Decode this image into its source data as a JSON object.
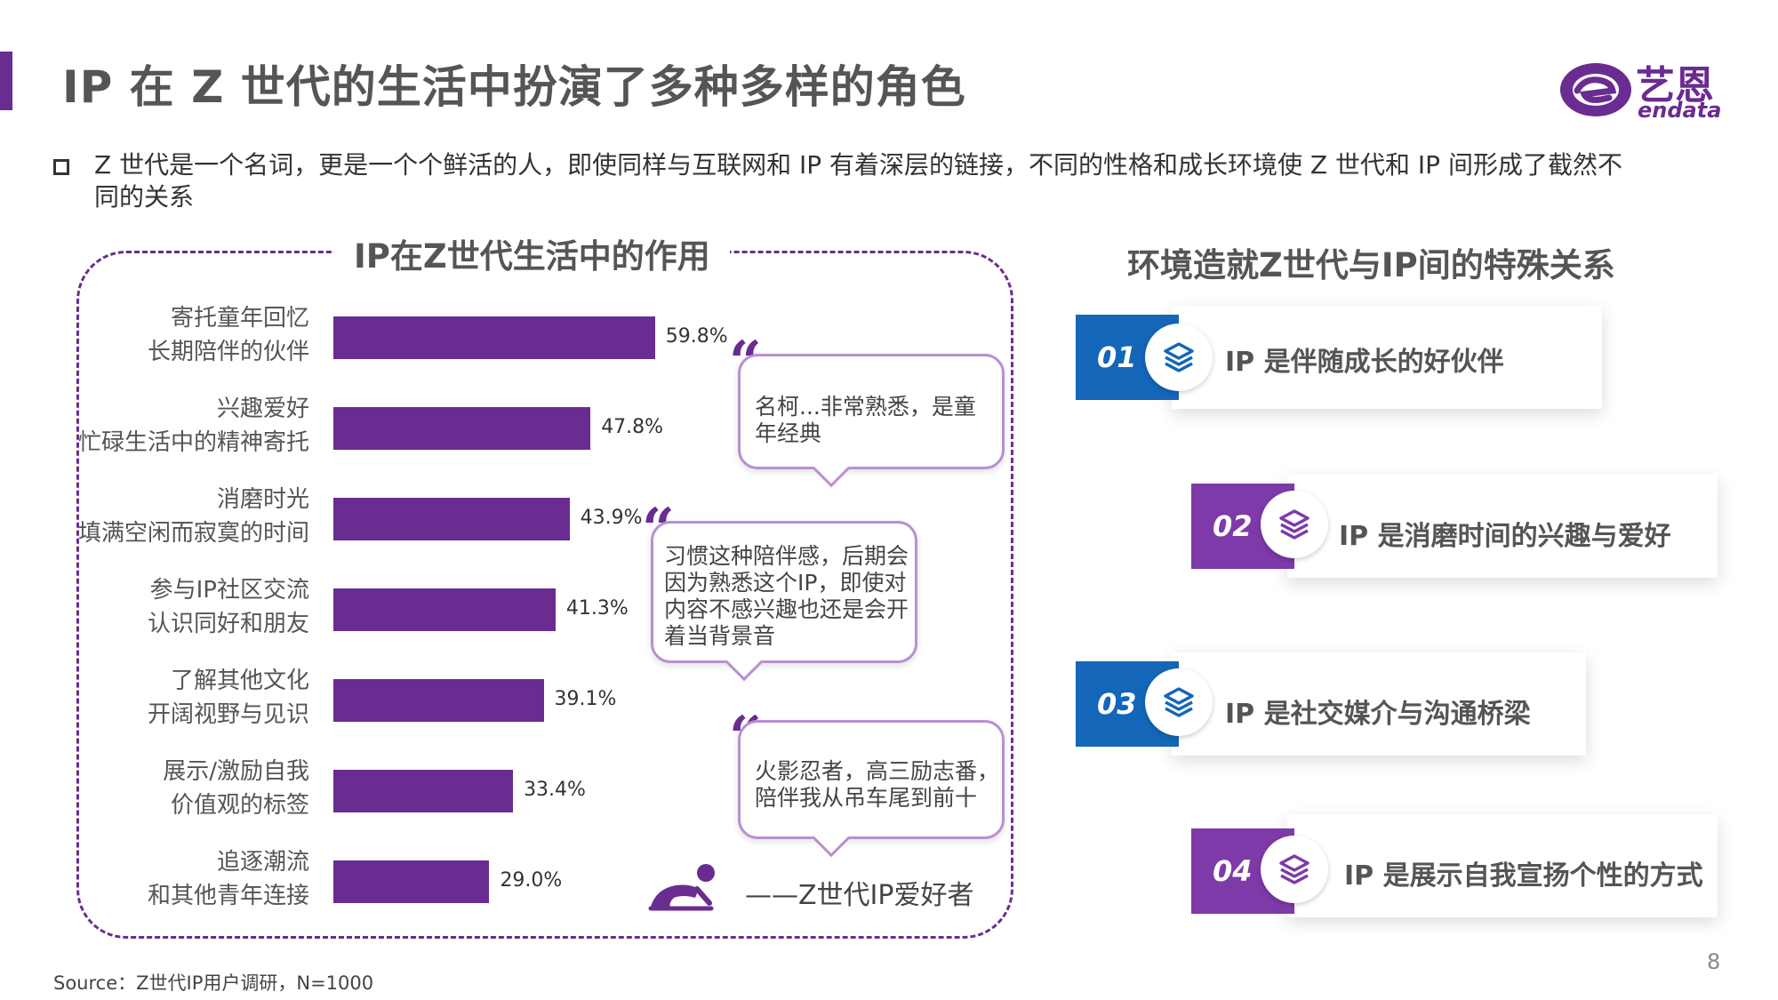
{
  "title": "IP 在 Z 世代的生活中扮演了多种多样的角色",
  "logo": {
    "cn": "艺恩",
    "en": "endata"
  },
  "intro": "Z 世代是一个名词，更是一个个鲜活的人，即使同样与互联网和 IP 有着深层的链接，不同的性格和成长环境使 Z 世代和 IP 间形成了截然不同的关系",
  "chart_data": {
    "type": "bar",
    "orientation": "horizontal",
    "title": "IP在Z世代生活中的作用",
    "categories": [
      [
        "寄托童年回忆",
        "长期陪伴的伙伴"
      ],
      [
        "兴趣爱好",
        "忙碌生活中的精神寄托"
      ],
      [
        "消磨时光",
        "填满空闲而寂寞的时间"
      ],
      [
        "参与IP社区交流",
        "认识同好和朋友"
      ],
      [
        "了解其他文化",
        "开阔视野与见识"
      ],
      [
        "展示/激励自我",
        "价值观的标签"
      ],
      [
        "追逐潮流",
        "和其他青年连接"
      ]
    ],
    "values": [
      59.8,
      47.8,
      43.9,
      41.3,
      39.1,
      33.4,
      29.0
    ],
    "value_labels": [
      "59.8%",
      "47.8%",
      "43.9%",
      "41.3%",
      "39.1%",
      "33.4%",
      "29.0%"
    ],
    "unit": "%",
    "bar_color": "#6a2c91"
  },
  "quotes": [
    "名柯...非常熟悉，是童年经典",
    "习惯这种陪伴感，后期会因为熟悉这个IP，即使对内容不感兴趣也还是会开着当背景音",
    "火影忍者，高三励志番，陪伴我从吊车尾到前十"
  ],
  "quote_mark": "“",
  "attribution": "——Z世代IP爱好者",
  "right_panel": {
    "title": "环境造就Z世代与IP间的特殊关系",
    "items": [
      {
        "num": "01",
        "text": "IP 是伴随成长的好伙伴",
        "color": "#1466b8"
      },
      {
        "num": "02",
        "text": "IP 是消磨时间的兴趣与爱好",
        "color": "#7d3aa8"
      },
      {
        "num": "03",
        "text": "IP 是社交媒介与沟通桥梁",
        "color": "#1466b8"
      },
      {
        "num": "04",
        "text": "IP 是展示自我宣扬个性的方式",
        "color": "#7d3aa8"
      }
    ]
  },
  "source": "Source：Z世代IP用户调研，N=1000",
  "page_number": "8",
  "colors": {
    "accent": "#6a2c91",
    "blue": "#1466b8",
    "purple": "#7d3aa8"
  }
}
